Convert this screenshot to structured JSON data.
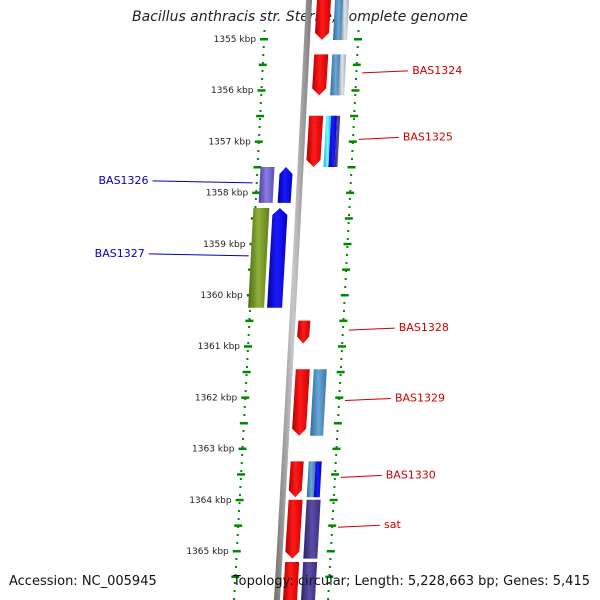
{
  "title": "Bacillus anthracis str. Sterne, complete genome",
  "footer": {
    "accession": "Accession: NC_005945",
    "topology": "Topology: circular; Length: 5,228,663 bp; Genes: 5,415"
  },
  "colors": {
    "forward_label": "#cc0000",
    "reverse_label": "#0000bb",
    "ticks": "#008800",
    "backbone": "#808080",
    "gene_red": "#ff0000",
    "gene_blue": "#0000ff",
    "cds_steelblue": "#4682b4",
    "cds_slateblue": "#4a3d8c",
    "cds_olive": "#6b8e23",
    "cds_purple": "#6a5acd",
    "cds_gray": "#9aa3ad",
    "cds_cyan": "#00e5ff"
  },
  "chart_data": {
    "type": "genome_map",
    "accession": "NC_005945",
    "topology": "circular",
    "genome_length_bp": 5228663,
    "gene_count": 5415,
    "visible_range_kbp": [
      1354.8,
      1365.6
    ],
    "ticks": [
      {
        "pos_kbp": 1355,
        "label": "1355 kbp"
      },
      {
        "pos_kbp": 1356,
        "label": "1356 kbp"
      },
      {
        "pos_kbp": 1357,
        "label": "1357 kbp"
      },
      {
        "pos_kbp": 1358,
        "label": "1358 kbp"
      },
      {
        "pos_kbp": 1359,
        "label": "1359 kbp"
      },
      {
        "pos_kbp": 1360,
        "label": "1360 kbp"
      },
      {
        "pos_kbp": 1361,
        "label": "1361 kbp"
      },
      {
        "pos_kbp": 1362,
        "label": "1362 kbp"
      },
      {
        "pos_kbp": 1363,
        "label": "1363 kbp"
      },
      {
        "pos_kbp": 1364,
        "label": "1364 kbp"
      },
      {
        "pos_kbp": 1365,
        "label": "1365 kbp"
      }
    ],
    "genes": [
      {
        "name": "BAS1324",
        "strand": "+",
        "start_kbp": 1355.3,
        "end_kbp": 1356.1
      },
      {
        "name": "BAS1325",
        "strand": "+",
        "start_kbp": 1356.5,
        "end_kbp": 1357.5
      },
      {
        "name": "BAS1326",
        "strand": "-",
        "start_kbp": 1357.5,
        "end_kbp": 1358.2
      },
      {
        "name": "BAS1327",
        "strand": "-",
        "start_kbp": 1358.3,
        "end_kbp": 1360.25
      },
      {
        "name": "BAS1328",
        "strand": "+",
        "start_kbp": 1360.5,
        "end_kbp": 1360.95
      },
      {
        "name": "BAS1329",
        "strand": "+",
        "start_kbp": 1361.45,
        "end_kbp": 1362.75
      },
      {
        "name": "BAS1330",
        "strand": "+",
        "start_kbp": 1363.25,
        "end_kbp": 1363.95
      },
      {
        "name": "sat",
        "strand": "+",
        "start_kbp": 1364.0,
        "end_kbp": 1365.15
      }
    ]
  }
}
